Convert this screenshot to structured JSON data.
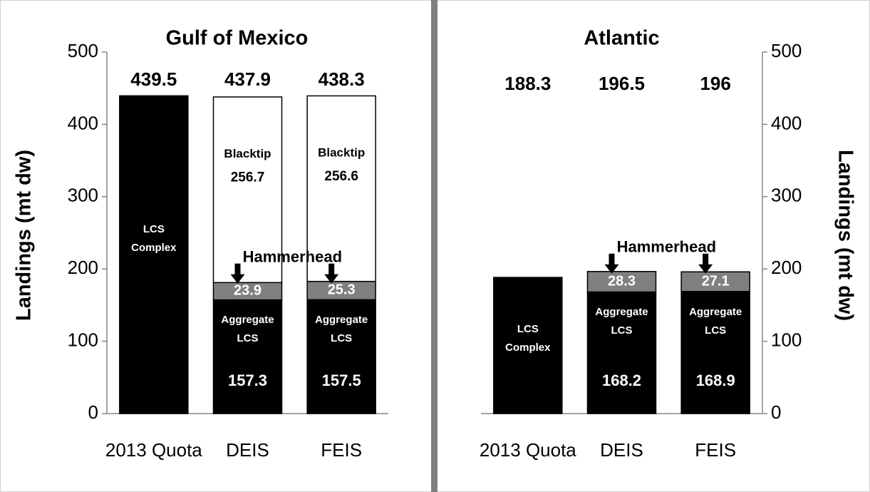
{
  "chart_data": [
    {
      "type": "bar",
      "title": "Gulf of Mexico",
      "ylabel": "Landings (mt dw)",
      "yaxis_position": "left",
      "categories": [
        "2013 Quota",
        "DEIS",
        "FEIS"
      ],
      "series": [
        {
          "name": "LCS Complex",
          "color": "#000000",
          "values": [
            439.5,
            null,
            null
          ]
        },
        {
          "name": "Aggregate LCS",
          "color": "#000000",
          "values": [
            null,
            157.3,
            157.5
          ]
        },
        {
          "name": "Hammerhead",
          "color": "#808080",
          "values": [
            null,
            23.9,
            25.3
          ]
        },
        {
          "name": "Blacktip",
          "color": "#ffffff",
          "values": [
            null,
            256.7,
            256.6
          ]
        }
      ],
      "totals": [
        439.5,
        437.9,
        438.3
      ],
      "ylim": [
        0,
        500
      ],
      "yticks": [
        0,
        100,
        200,
        300,
        400,
        500
      ]
    },
    {
      "type": "bar",
      "title": "Atlantic",
      "ylabel": "Landings (mt dw)",
      "yaxis_position": "right",
      "categories": [
        "2013 Quota",
        "DEIS",
        "FEIS"
      ],
      "series": [
        {
          "name": "LCS Complex",
          "color": "#000000",
          "values": [
            188.3,
            null,
            null
          ]
        },
        {
          "name": "Aggregate LCS",
          "color": "#000000",
          "values": [
            null,
            168.2,
            168.9
          ]
        },
        {
          "name": "Hammerhead",
          "color": "#808080",
          "values": [
            null,
            28.3,
            27.1
          ]
        }
      ],
      "totals": [
        188.3,
        196.5,
        196
      ],
      "ylim": [
        0,
        500
      ],
      "yticks": [
        0,
        100,
        200,
        300,
        400,
        500
      ]
    }
  ]
}
